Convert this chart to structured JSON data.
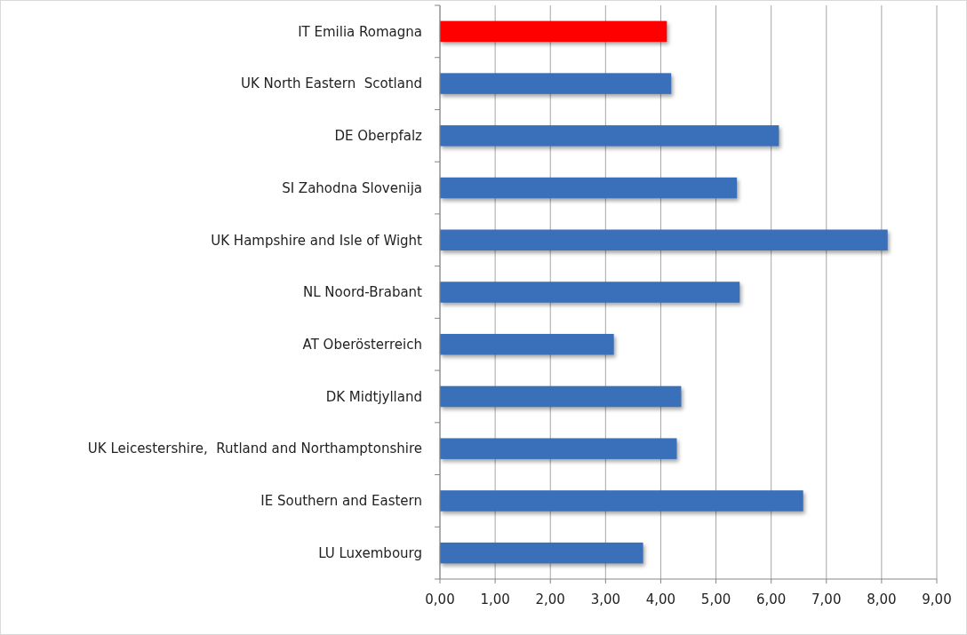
{
  "chart_data": {
    "type": "bar",
    "orientation": "horizontal",
    "categories": [
      "IT Emilia Romagna",
      "UK North Eastern  Scotland",
      "DE Oberpfalz",
      "SI Zahodna Slovenija",
      "UK Hampshire and Isle of Wight",
      "NL Noord-Brabant",
      "AT Oberösterreich",
      "DK Midtjylland",
      "UK Leicestershire,  Rutland and Northamptonshire",
      "IE Southern and Eastern",
      "LU Luxembourg"
    ],
    "values": [
      4.11,
      4.19,
      6.14,
      5.38,
      8.11,
      5.43,
      3.15,
      4.37,
      4.29,
      6.58,
      3.68
    ],
    "colors": [
      "#ff0000",
      "#3a6fba",
      "#3a6fba",
      "#3a6fba",
      "#3a6fba",
      "#3a6fba",
      "#3a6fba",
      "#3a6fba",
      "#3a6fba",
      "#3a6fba",
      "#3a6fba"
    ],
    "xlim": [
      0,
      9
    ],
    "xticks": [
      {
        "value": 0,
        "label": "0,00"
      },
      {
        "value": 1,
        "label": "1,00"
      },
      {
        "value": 2,
        "label": "2,00"
      },
      {
        "value": 3,
        "label": "3,00"
      },
      {
        "value": 4,
        "label": "4,00"
      },
      {
        "value": 5,
        "label": "5,00"
      },
      {
        "value": 6,
        "label": "6,00"
      },
      {
        "value": 7,
        "label": "7,00"
      },
      {
        "value": 8,
        "label": "8,00"
      },
      {
        "value": 9,
        "label": "9,00"
      }
    ],
    "grid": "x"
  }
}
